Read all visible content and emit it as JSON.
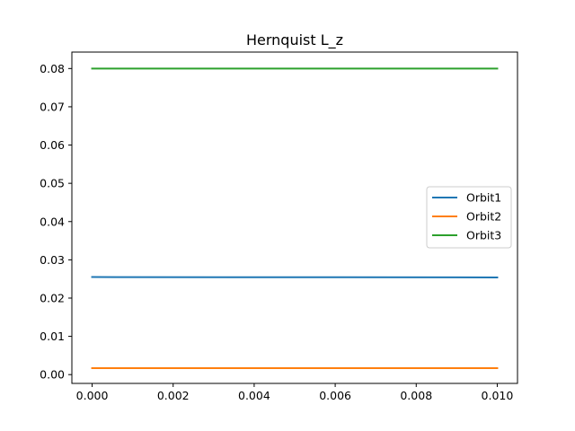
{
  "chart_data": {
    "type": "line",
    "title": "Hernquist L_z",
    "xlabel": "",
    "ylabel": "",
    "xlim": [
      -0.0005,
      0.0105
    ],
    "ylim": [
      -0.0023,
      0.0843
    ],
    "x_ticks": [
      0.0,
      0.002,
      0.004,
      0.006,
      0.008,
      0.01
    ],
    "x_tick_labels": [
      "0.000",
      "0.002",
      "0.004",
      "0.006",
      "0.008",
      "0.010"
    ],
    "y_ticks": [
      0.0,
      0.01,
      0.02,
      0.03,
      0.04,
      0.05,
      0.06,
      0.07,
      0.08
    ],
    "y_tick_labels": [
      "0.00",
      "0.01",
      "0.02",
      "0.03",
      "0.04",
      "0.05",
      "0.06",
      "0.07",
      "0.08"
    ],
    "grid": false,
    "legend_position": "center-right",
    "series": [
      {
        "name": "Orbit1",
        "color": "#1f77b4",
        "x": [
          0.0,
          0.01
        ],
        "y": [
          0.0255,
          0.0254
        ]
      },
      {
        "name": "Orbit2",
        "color": "#ff7f0e",
        "x": [
          0.0,
          0.01
        ],
        "y": [
          0.0017,
          0.0017
        ]
      },
      {
        "name": "Orbit3",
        "color": "#2ca02c",
        "x": [
          0.0,
          0.01
        ],
        "y": [
          0.08,
          0.08
        ]
      }
    ]
  }
}
